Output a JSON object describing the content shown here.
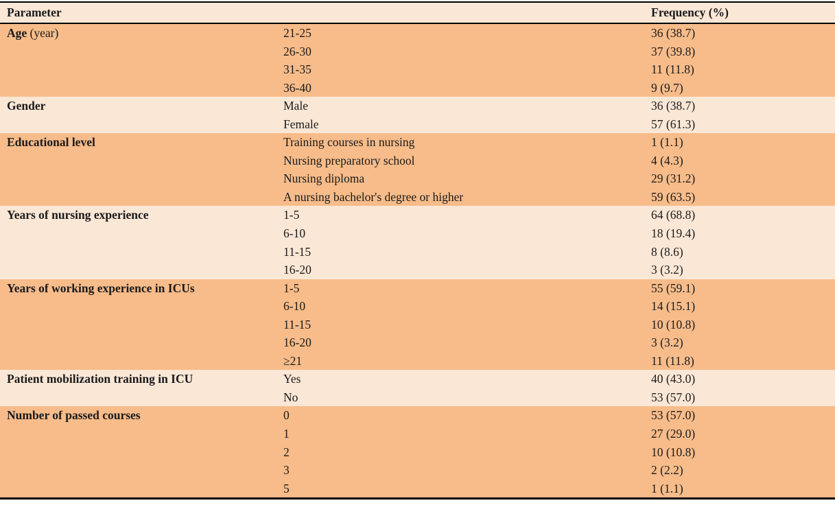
{
  "table": {
    "header": {
      "parameter": "Parameter",
      "category": "",
      "frequency": "Frequency (%)"
    },
    "colors": {
      "orange": "#f7bc8a",
      "peach": "#fbe7d6",
      "header_bg": "#fbe7d6",
      "border": "#000000",
      "text": "#1a1a1a"
    },
    "groups": [
      {
        "parameter_bold": "Age",
        "parameter_rest": " (year)",
        "shade": "orange",
        "rows": [
          {
            "category": "21-25",
            "frequency": "36 (38.7)"
          },
          {
            "category": "26-30",
            "frequency": "37 (39.8)"
          },
          {
            "category": "31-35",
            "frequency": "11 (11.8)"
          },
          {
            "category": "36-40",
            "frequency": "9 (9.7)"
          }
        ]
      },
      {
        "parameter_bold": "Gender",
        "parameter_rest": "",
        "shade": "peach",
        "rows": [
          {
            "category": "Male",
            "frequency": "36 (38.7)"
          },
          {
            "category": "Female",
            "frequency": "57 (61.3)"
          }
        ]
      },
      {
        "parameter_bold": "Educational level",
        "parameter_rest": "",
        "shade": "orange",
        "rows": [
          {
            "category": "Training courses in nursing",
            "frequency": "1 (1.1)"
          },
          {
            "category": "Nursing preparatory school",
            "frequency": "4 (4.3)"
          },
          {
            "category": "Nursing diploma",
            "frequency": "29 (31.2)"
          },
          {
            "category": "A nursing bachelor's degree or higher",
            "frequency": "59 (63.5)"
          }
        ]
      },
      {
        "parameter_bold": "Years of nursing experience",
        "parameter_rest": "",
        "shade": "peach",
        "rows": [
          {
            "category": "1-5",
            "frequency": "64 (68.8)"
          },
          {
            "category": "6-10",
            "frequency": "18 (19.4)"
          },
          {
            "category": "11-15",
            "frequency": "8 (8.6)"
          },
          {
            "category": "16-20",
            "frequency": "3 (3.2)"
          }
        ]
      },
      {
        "parameter_bold": "Years of working experience in ICUs",
        "parameter_rest": "",
        "shade": "orange",
        "rows": [
          {
            "category": "1-5",
            "frequency": "55 (59.1)"
          },
          {
            "category": "6-10",
            "frequency": "14 (15.1)"
          },
          {
            "category": "11-15",
            "frequency": "10 (10.8)"
          },
          {
            "category": "16-20",
            "frequency": "3 (3.2)"
          },
          {
            "category": "≥21",
            "frequency": "11 (11.8)"
          }
        ]
      },
      {
        "parameter_bold": "Patient mobilization training in ICU",
        "parameter_rest": "",
        "shade": "peach",
        "rows": [
          {
            "category": "Yes",
            "frequency": "40 (43.0)"
          },
          {
            "category": "No",
            "frequency": "53 (57.0)"
          }
        ]
      },
      {
        "parameter_bold": "Number of passed courses",
        "parameter_rest": "",
        "shade": "orange",
        "rows": [
          {
            "category": "0",
            "frequency": "53 (57.0)"
          },
          {
            "category": "1",
            "frequency": "27 (29.0)"
          },
          {
            "category": "2",
            "frequency": "10 (10.8)"
          },
          {
            "category": "3",
            "frequency": "2 (2.2)"
          },
          {
            "category": "5",
            "frequency": "1 (1.1)"
          }
        ]
      }
    ]
  }
}
